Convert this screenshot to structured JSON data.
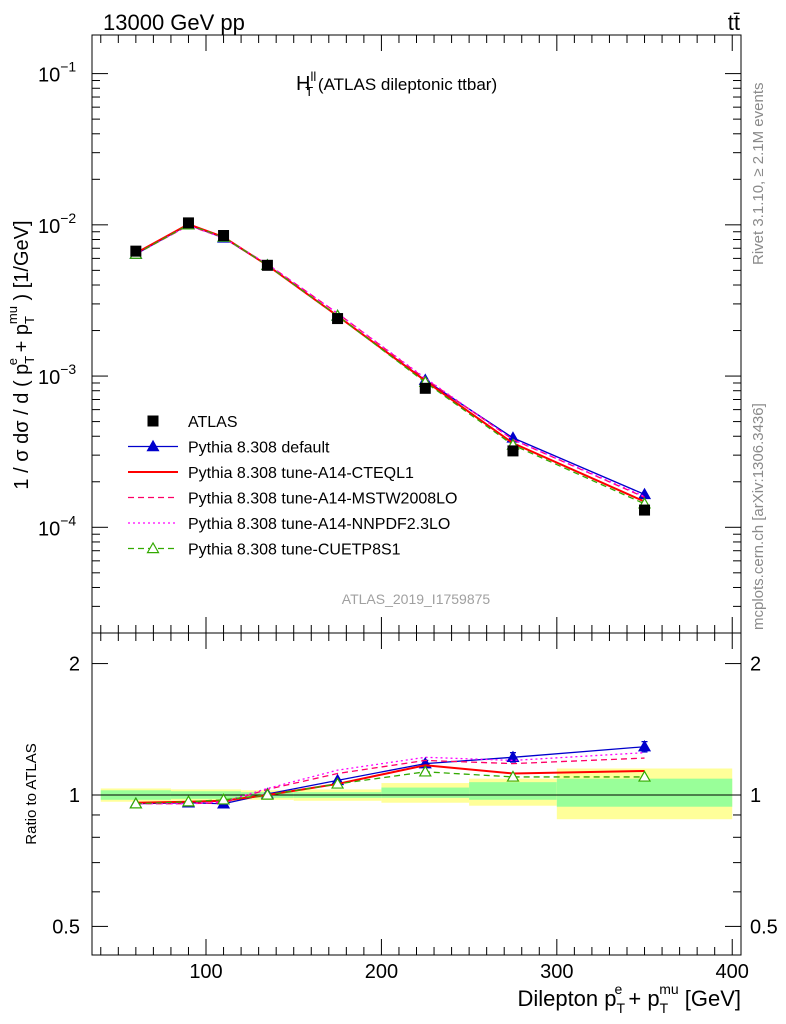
{
  "header": {
    "energy": "13000 GeV pp",
    "process": "tt̄",
    "rivet_version": "Rivet 3.1.10, ≥ 2.1M events",
    "site_ref": "mcplots.cern.ch [arXiv:1306.3436]"
  },
  "chart_data": [
    {
      "type": "line",
      "title_main": "H",
      "title_sup": "ll",
      "title_sub": "T",
      "title_rest": " (ATLAS dileptonic ttbar)",
      "ylabel": "1 / σ  dσ / d ( pᵀᵉ + pᵀᵐᵘ ) [1/GeV]",
      "ylabel_parts": {
        "a": "1 / σ  dσ / d ( p",
        "sub1": "T",
        "sup1": "e",
        "b": " + p",
        "sub2": "T",
        "sup2": "mu",
        "c": " ) [1/GeV]"
      },
      "yscale": "log",
      "ylim": [
        2e-05,
        0.18
      ],
      "xlim": [
        35,
        405
      ],
      "y_ticks": [
        {
          "value": 0.1,
          "label": "10",
          "exp": "−1"
        },
        {
          "value": 0.01,
          "label": "10",
          "exp": "−2"
        },
        {
          "value": 0.001,
          "label": "10",
          "exp": "−3"
        },
        {
          "value": 0.0001,
          "label": "10",
          "exp": "−4"
        }
      ],
      "analysis_id": "ATLAS_2019_I1759875",
      "x": [
        60,
        90,
        110,
        135,
        175,
        225,
        275,
        350
      ],
      "data": {
        "name": "ATLAS",
        "values": [
          0.0067,
          0.0103,
          0.0085,
          0.0054,
          0.0024,
          0.00083,
          0.00032,
          0.00013
        ]
      },
      "series": [
        {
          "name": "Pythia 8.308 default",
          "color": "#0000cc",
          "style": "solid",
          "marker": "triangle-filled",
          "values": [
            0.0064,
            0.01,
            0.0082,
            0.0054,
            0.0025,
            0.00094,
            0.00039,
            0.000165
          ]
        },
        {
          "name": "Pythia 8.308 tune-A14-CTEQL1",
          "color": "#ff0000",
          "style": "solid",
          "marker": "none",
          "values": [
            0.0065,
            0.0101,
            0.0083,
            0.0054,
            0.0025,
            0.00093,
            0.00036,
            0.000148
          ]
        },
        {
          "name": "Pythia 8.308 tune-A14-MSTW2008LO",
          "color": "#ff0066",
          "style": "dashed",
          "marker": "none",
          "values": [
            0.0064,
            0.0099,
            0.0082,
            0.0055,
            0.0026,
            0.00096,
            0.00038,
            0.000158
          ]
        },
        {
          "name": "Pythia 8.308 tune-A14-NNPDF2.3LO",
          "color": "#ff00ff",
          "style": "dotted",
          "marker": "none",
          "values": [
            0.0064,
            0.0099,
            0.0082,
            0.0055,
            0.0026,
            0.00097,
            0.00038,
            0.00016
          ]
        },
        {
          "name": "Pythia 8.308 tune-CUETP8S1",
          "color": "#33aa00",
          "style": "dashed",
          "marker": "triangle-open",
          "values": [
            0.0064,
            0.01,
            0.0083,
            0.0054,
            0.0025,
            0.00091,
            0.00035,
            0.000143
          ]
        }
      ]
    },
    {
      "type": "line",
      "ylabel": "Ratio to ATLAS",
      "xlabel_parts": {
        "a": "Dilepton p",
        "sub1": "T",
        "sup1": "e",
        "b": " + p",
        "sub2": "T",
        "sup2": "mu",
        "c": " [GeV]"
      },
      "yscale": "log",
      "ylim": [
        0.43,
        2.35
      ],
      "xlim": [
        35,
        405
      ],
      "x_ticks": [
        100,
        200,
        300,
        400
      ],
      "y_ticks": [
        {
          "value": 0.5,
          "label": "0.5"
        },
        {
          "value": 1,
          "label": "1"
        },
        {
          "value": 2,
          "label": "2"
        }
      ],
      "bands": [
        {
          "x": [
            40,
            80
          ],
          "stat": [
            0.975,
            1.025
          ],
          "total": [
            0.965,
            1.035
          ]
        },
        {
          "x": [
            80,
            100
          ],
          "stat": [
            0.98,
            1.02
          ],
          "total": [
            0.97,
            1.03
          ]
        },
        {
          "x": [
            100,
            120
          ],
          "stat": [
            0.98,
            1.02
          ],
          "total": [
            0.97,
            1.03
          ]
        },
        {
          "x": [
            120,
            150
          ],
          "stat": [
            0.985,
            1.015
          ],
          "total": [
            0.975,
            1.025
          ]
        },
        {
          "x": [
            150,
            200
          ],
          "stat": [
            0.985,
            1.015
          ],
          "total": [
            0.97,
            1.03
          ]
        },
        {
          "x": [
            200,
            250
          ],
          "stat": [
            0.985,
            1.04
          ],
          "total": [
            0.96,
            1.065
          ]
        },
        {
          "x": [
            250,
            300
          ],
          "stat": [
            0.975,
            1.07
          ],
          "total": [
            0.945,
            1.09
          ]
        },
        {
          "x": [
            300,
            400
          ],
          "stat": [
            0.94,
            1.09
          ],
          "total": [
            0.88,
            1.15
          ]
        }
      ],
      "x": [
        60,
        90,
        110,
        135,
        175,
        225,
        275,
        350
      ],
      "series": [
        {
          "name": "Pythia 8.308 default",
          "color": "#0000cc",
          "style": "solid",
          "marker": "triangle-filled",
          "values": [
            0.955,
            0.96,
            0.955,
            1.005,
            1.08,
            1.18,
            1.22,
            1.29
          ],
          "err": [
            0,
            0,
            0,
            0,
            0,
            0.02,
            0.03,
            0.035
          ]
        },
        {
          "name": "Pythia 8.308 tune-A14-CTEQL1",
          "color": "#ff0000",
          "style": "solid",
          "marker": "none",
          "values": [
            0.96,
            0.965,
            0.97,
            1.0,
            1.06,
            1.17,
            1.12,
            1.135
          ]
        },
        {
          "name": "Pythia 8.308 tune-A14-MSTW2008LO",
          "color": "#ff0066",
          "style": "dashed",
          "marker": "none",
          "values": [
            0.955,
            0.955,
            0.96,
            1.03,
            1.12,
            1.2,
            1.18,
            1.215
          ]
        },
        {
          "name": "Pythia 8.308 tune-A14-NNPDF2.3LO",
          "color": "#ff00ff",
          "style": "dotted",
          "marker": "none",
          "values": [
            0.955,
            0.955,
            0.965,
            1.035,
            1.14,
            1.22,
            1.2,
            1.25
          ]
        },
        {
          "name": "Pythia 8.308 tune-CUETP8S1",
          "color": "#33aa00",
          "style": "dashed",
          "marker": "triangle-open",
          "values": [
            0.955,
            0.965,
            0.975,
            1.0,
            1.06,
            1.13,
            1.1,
            1.1
          ]
        }
      ]
    }
  ]
}
